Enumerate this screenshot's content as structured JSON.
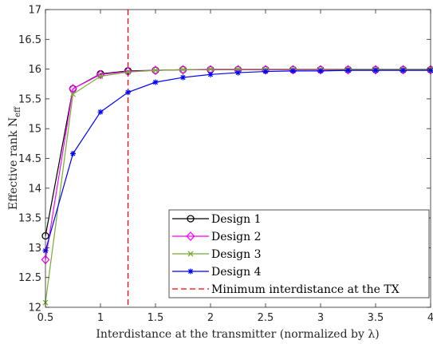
{
  "chart_data": {
    "type": "line",
    "xlabel": "Interdistance at the transmitter (normalized by λ)",
    "ylabel": "Effective rank N",
    "ylabel_sub": "eff",
    "xlim": [
      0.5,
      4
    ],
    "ylim": [
      12,
      17
    ],
    "xticks": [
      "0.5",
      "1",
      "1.5",
      "2",
      "2.5",
      "3",
      "3.5",
      "4"
    ],
    "yticks": [
      "12",
      "12.5",
      "13",
      "13.5",
      "14",
      "14.5",
      "15",
      "15.5",
      "16",
      "16.5",
      "17"
    ],
    "x": [
      0.5,
      0.75,
      1.0,
      1.25,
      1.5,
      1.75,
      2.0,
      2.25,
      2.5,
      2.75,
      3.0,
      3.25,
      3.5,
      3.75,
      4.0
    ],
    "series": [
      {
        "name": "Design 1",
        "color": "#000000",
        "marker": "circle",
        "values": [
          13.2,
          15.67,
          15.92,
          15.97,
          15.98,
          15.99,
          15.99,
          15.99,
          15.99,
          15.99,
          15.99,
          15.99,
          15.99,
          15.99,
          15.99
        ]
      },
      {
        "name": "Design 2",
        "color": "#ff00ff",
        "marker": "diamond",
        "values": [
          12.8,
          15.67,
          15.91,
          15.96,
          15.98,
          15.99,
          15.99,
          15.99,
          15.99,
          15.99,
          15.99,
          15.99,
          15.99,
          15.99,
          15.99
        ]
      },
      {
        "name": "Design 3",
        "color": "#77ac30",
        "marker": "x",
        "values": [
          12.08,
          15.58,
          15.88,
          15.95,
          15.98,
          15.99,
          16.0,
          16.0,
          16.0,
          16.0,
          16.0,
          16.0,
          16.0,
          16.0,
          16.0
        ]
      },
      {
        "name": "Design 4",
        "color": "#0000ff",
        "marker": "asterisk",
        "values": [
          12.95,
          14.58,
          15.28,
          15.61,
          15.78,
          15.86,
          15.91,
          15.94,
          15.96,
          15.97,
          15.97,
          15.98,
          15.98,
          15.98,
          15.98
        ]
      }
    ],
    "vline": {
      "name": "Minimum interdistance at the TX",
      "x": 1.25,
      "color": "#ff0000",
      "style": "dashed"
    },
    "legend_position": "bottom-right",
    "grid": false
  }
}
